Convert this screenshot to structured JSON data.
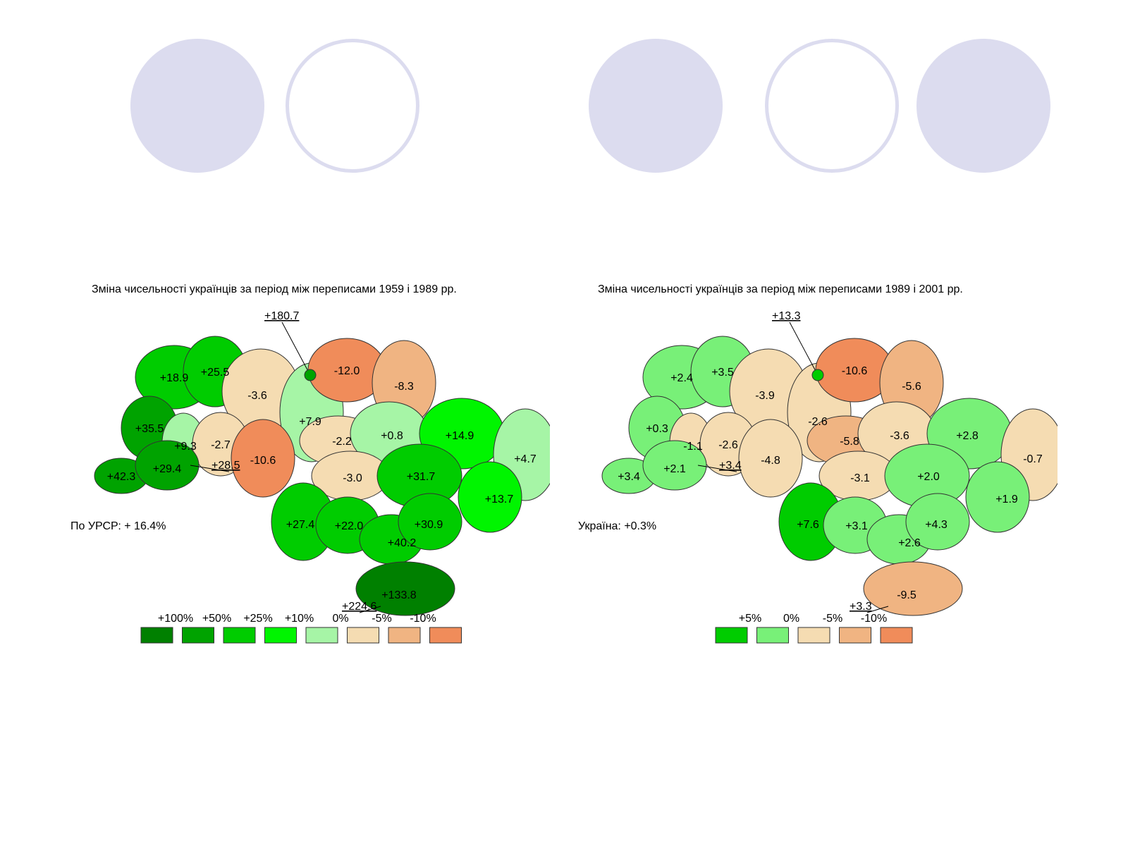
{
  "decor": {
    "circles": [
      {
        "style": "filled"
      },
      {
        "style": "outline"
      },
      {
        "style": "filled"
      },
      {
        "style": "outline"
      },
      {
        "style": "filled"
      }
    ]
  },
  "maps": [
    {
      "title": "Зміна чисельності українців за період між переписами 1959 і 1989 рр.",
      "total": "По УРСР: + 16.4%",
      "legend": [
        {
          "label": "+100%",
          "color": "#008000"
        },
        {
          "label": "+50%",
          "color": "#00a300"
        },
        {
          "label": "+25%",
          "color": "#00cc00"
        },
        {
          "label": "+10%",
          "color": "#00f500"
        },
        {
          "label": "0%",
          "color": "#a6f5a6"
        },
        {
          "label": "-5%",
          "color": "#f5dcb2"
        },
        {
          "label": "-10%",
          "color": "#f0b482"
        },
        {
          "label": "",
          "color": "#f08c5a"
        }
      ],
      "city_labels": [
        "+180.7",
        "+28.5",
        "+224.6"
      ],
      "regions": [
        {
          "value": "+18.9",
          "color": "#00cc00"
        },
        {
          "value": "+25.5",
          "color": "#00cc00"
        },
        {
          "value": "-3.6",
          "color": "#f5dcb2"
        },
        {
          "value": "+7.9",
          "color": "#a6f5a6"
        },
        {
          "value": "-12.0",
          "color": "#f08c5a"
        },
        {
          "value": "-8.3",
          "color": "#f0b482"
        },
        {
          "value": "+35.5",
          "color": "#00a300"
        },
        {
          "value": "+9.3",
          "color": "#a6f5a6"
        },
        {
          "value": "-2.7",
          "color": "#f5dcb2"
        },
        {
          "value": "-10.6",
          "color": "#f08c5a"
        },
        {
          "value": "-2.2",
          "color": "#f5dcb2"
        },
        {
          "value": "+0.8",
          "color": "#a6f5a6"
        },
        {
          "value": "+14.9",
          "color": "#00f500"
        },
        {
          "value": "+4.7",
          "color": "#a6f5a6"
        },
        {
          "value": "+42.3",
          "color": "#00a300"
        },
        {
          "value": "+29.4",
          "color": "#00a300"
        },
        {
          "value": "-3.0",
          "color": "#f5dcb2"
        },
        {
          "value": "+31.7",
          "color": "#00cc00"
        },
        {
          "value": "+13.7",
          "color": "#00f500"
        },
        {
          "value": "+27.4",
          "color": "#00cc00"
        },
        {
          "value": "+22.0",
          "color": "#00cc00"
        },
        {
          "value": "+40.2",
          "color": "#00cc00"
        },
        {
          "value": "+30.9",
          "color": "#00cc00"
        },
        {
          "value": "+133.8",
          "color": "#008000"
        }
      ]
    },
    {
      "title": "Зміна чисельності українців за період між переписами 1989 і 2001 рр.",
      "total": "Україна: +0.3%",
      "legend": [
        {
          "label": "+5%",
          "color": "#00cc00"
        },
        {
          "label": "0%",
          "color": "#78f078"
        },
        {
          "label": "-5%",
          "color": "#f5dcb2"
        },
        {
          "label": "-10%",
          "color": "#f0b482"
        },
        {
          "label": "",
          "color": "#f08c5a"
        }
      ],
      "city_labels": [
        "+13.3",
        "+3.4",
        "+3.3"
      ],
      "regions": [
        {
          "value": "+2.4",
          "color": "#78f078"
        },
        {
          "value": "+3.5",
          "color": "#78f078"
        },
        {
          "value": "-3.9",
          "color": "#f5dcb2"
        },
        {
          "value": "-2.6",
          "color": "#f5dcb2"
        },
        {
          "value": "-10.6",
          "color": "#f08c5a"
        },
        {
          "value": "-5.6",
          "color": "#f0b482"
        },
        {
          "value": "+0.3",
          "color": "#78f078"
        },
        {
          "value": "-1.1",
          "color": "#f5dcb2"
        },
        {
          "value": "-2.6",
          "color": "#f5dcb2"
        },
        {
          "value": "-4.8",
          "color": "#f5dcb2"
        },
        {
          "value": "-5.8",
          "color": "#f0b482"
        },
        {
          "value": "-3.6",
          "color": "#f5dcb2"
        },
        {
          "value": "+2.8",
          "color": "#78f078"
        },
        {
          "value": "-0.7",
          "color": "#f5dcb2"
        },
        {
          "value": "+3.4",
          "color": "#78f078"
        },
        {
          "value": "+2.1",
          "color": "#78f078"
        },
        {
          "value": "-3.1",
          "color": "#f5dcb2"
        },
        {
          "value": "+2.0",
          "color": "#78f078"
        },
        {
          "value": "+1.9",
          "color": "#78f078"
        },
        {
          "value": "+7.6",
          "color": "#00cc00"
        },
        {
          "value": "+3.1",
          "color": "#78f078"
        },
        {
          "value": "+2.6",
          "color": "#78f078"
        },
        {
          "value": "+4.3",
          "color": "#78f078"
        },
        {
          "value": "-9.5",
          "color": "#f0b482"
        }
      ]
    }
  ]
}
